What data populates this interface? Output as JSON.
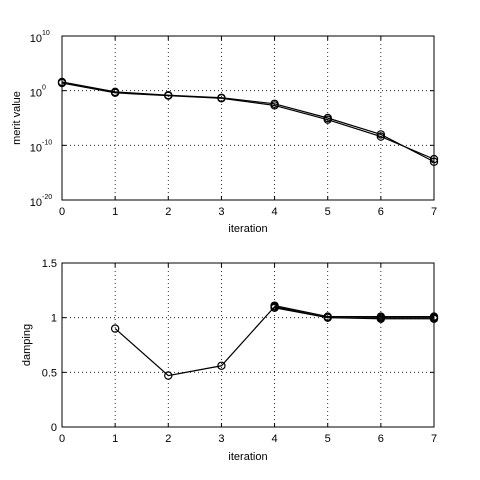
{
  "chart_data": [
    {
      "type": "line",
      "title": "",
      "xlabel": "iteration",
      "ylabel": "merit value",
      "yscale": "log",
      "xlim": [
        0,
        7
      ],
      "ylim": [
        1e-20,
        10000000000.0
      ],
      "xticks": [
        "0",
        "1",
        "2",
        "3",
        "4",
        "5",
        "6",
        "7"
      ],
      "yticks": [
        {
          "base": "10",
          "exp": "10",
          "value": 10000000000.0
        },
        {
          "base": "10",
          "exp": "0",
          "value": 1
        },
        {
          "base": "10",
          "exp": "-10",
          "value": 1e-10
        },
        {
          "base": "10",
          "exp": "-20",
          "value": 1e-20
        }
      ],
      "grid": true,
      "marker": "circle",
      "line_color": "#000000",
      "series": [
        {
          "x": [
            0,
            1,
            2,
            3,
            4,
            5,
            6,
            7
          ],
          "y": [
            40,
            0.6,
            0.15,
            0.05,
            0.004,
            1e-05,
            1e-08,
            1e-13
          ]
        },
        {
          "x": [
            0,
            1,
            2,
            3,
            4,
            5,
            6,
            7
          ],
          "y": [
            25,
            0.4,
            0.12,
            0.04,
            0.002,
            5e-06,
            4e-09,
            3e-13
          ]
        }
      ]
    },
    {
      "type": "line",
      "title": "",
      "xlabel": "iteration",
      "ylabel": "damping",
      "xlim": [
        0,
        7
      ],
      "ylim": [
        0,
        1.5
      ],
      "xticks": [
        "0",
        "1",
        "2",
        "3",
        "4",
        "5",
        "6",
        "7"
      ],
      "yticks": [
        "0",
        "0.5",
        "1",
        "1.5"
      ],
      "ytick_values": [
        0,
        0.5,
        1,
        1.5
      ],
      "grid": true,
      "marker": "circle",
      "line_color": "#000000",
      "series": [
        {
          "x": [
            1,
            2,
            3,
            4,
            5,
            6,
            7
          ],
          "y": [
            0.9,
            0.47,
            0.56,
            1.1,
            1.0,
            1.0,
            1.0
          ]
        },
        {
          "x": [
            4,
            5,
            6,
            7
          ],
          "y": [
            1.11,
            1.01,
            1.01,
            1.01
          ]
        },
        {
          "x": [
            4,
            5,
            6,
            7
          ],
          "y": [
            1.09,
            1.0,
            0.99,
            0.99
          ]
        }
      ]
    }
  ]
}
